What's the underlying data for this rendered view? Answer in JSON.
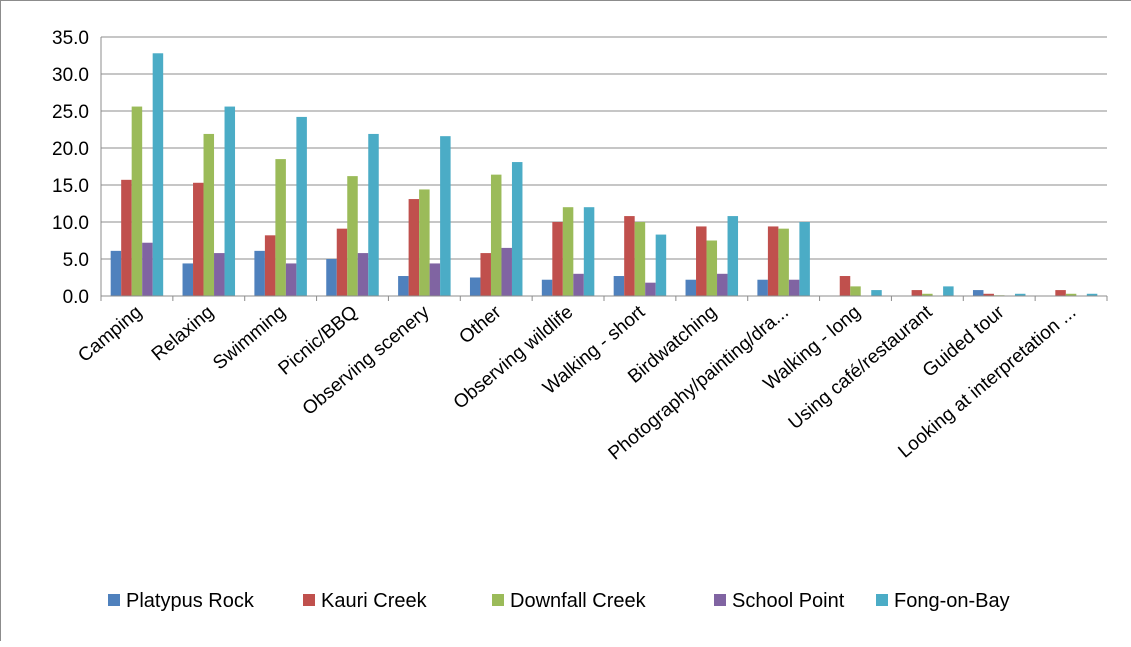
{
  "chart_data": {
    "type": "bar",
    "title": "",
    "xlabel": "",
    "ylabel": "",
    "ylim": [
      0,
      35
    ],
    "yticks": [
      "35.0",
      "30.0",
      "25.0",
      "20.0",
      "15.0",
      "10.0",
      "5.0",
      "0.0"
    ],
    "ytick_values": [
      35,
      30,
      25,
      20,
      15,
      10,
      5,
      0
    ],
    "grid": true,
    "legend_position": "bottom",
    "categories": [
      "Camping",
      "Relaxing",
      "Swimming",
      "Picnic/BBQ",
      "Observing scenery",
      "Other",
      "Observing wildlife",
      "Walking - short",
      "Birdwatching",
      "Photography/painting/dra...",
      "Walking - long",
      "Using café/restaurant",
      "Guided tour",
      "Looking at interpretation ..."
    ],
    "series": [
      {
        "name": "Platypus Rock",
        "color": "#4f81bd",
        "values": [
          6.1,
          4.4,
          6.1,
          5.0,
          2.7,
          2.5,
          2.2,
          2.7,
          2.2,
          2.2,
          0.0,
          0.0,
          0.8,
          0.0
        ]
      },
      {
        "name": "Kauri Creek",
        "color": "#c0504d",
        "values": [
          15.7,
          15.3,
          8.2,
          9.1,
          13.1,
          5.8,
          10.0,
          10.8,
          9.4,
          9.4,
          2.7,
          0.8,
          0.3,
          0.8
        ]
      },
      {
        "name": "Downfall Creek",
        "color": "#9bbb59",
        "values": [
          25.6,
          21.9,
          18.5,
          16.2,
          14.4,
          16.4,
          12.0,
          10.0,
          7.5,
          9.1,
          1.3,
          0.3,
          0.1,
          0.3
        ]
      },
      {
        "name": "School Point",
        "color": "#8064a2",
        "values": [
          7.2,
          5.8,
          4.4,
          5.8,
          4.4,
          6.5,
          3.0,
          1.8,
          3.0,
          2.2,
          0.0,
          0.0,
          0.0,
          0.0
        ]
      },
      {
        "name": "Fong-on-Bay",
        "color": "#4bacc6",
        "values": [
          32.8,
          25.6,
          24.2,
          21.9,
          21.6,
          18.1,
          12.0,
          8.3,
          10.8,
          10.0,
          0.8,
          1.3,
          0.3,
          0.3
        ]
      }
    ]
  }
}
